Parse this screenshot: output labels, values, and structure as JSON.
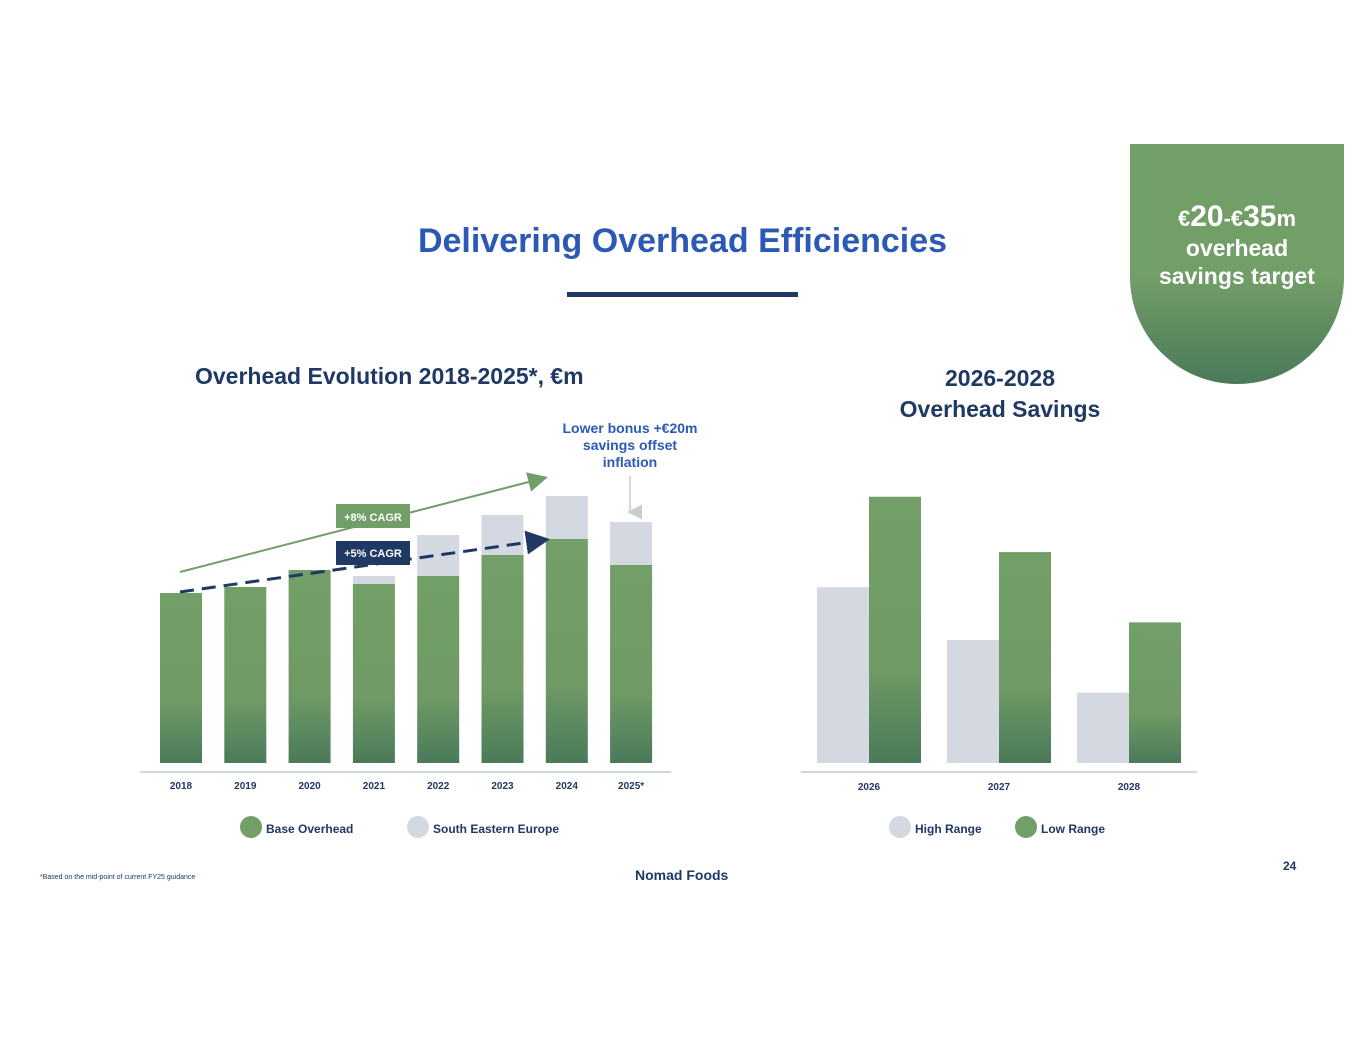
{
  "page": {
    "title": "Delivering Overhead Efficiencies",
    "footnote": "*Based on the mid-point of current FY25 guidance",
    "logo": "Nomad Foods",
    "page_number": "24"
  },
  "badge": {
    "prefix1": "€",
    "num1": "20",
    "sep": "-€",
    "num2": "35",
    "suffix": "m",
    "line2": "overhead",
    "line3": "savings target"
  },
  "colors": {
    "title_blue": "#2B59B5",
    "navy": "#1F3864",
    "green": "#729E67",
    "green_dark": "#4A7A5A",
    "grey": "#D4D8E0"
  },
  "chart_data": [
    {
      "type": "bar",
      "stacked": true,
      "title": "Overhead Evolution 2018-2025*, €m",
      "categories": [
        "2018",
        "2019",
        "2020",
        "2021",
        "2022",
        "2023",
        "2024",
        "2025*"
      ],
      "series": [
        {
          "name": "Base Overhead",
          "values": [
            170,
            176,
            193,
            179,
            187,
            208,
            224,
            198
          ]
        },
        {
          "name": "South Eastern Europe",
          "values": [
            0,
            0,
            0,
            8,
            41,
            40,
            43,
            43
          ]
        }
      ],
      "ylim": [
        0,
        290
      ],
      "annotations": {
        "cagr_high": "+8% CAGR",
        "cagr_low": "+5% CAGR",
        "callout_line1": "Lower bonus +€20m",
        "callout_line2": "savings offset",
        "callout_line3": "inflation"
      }
    },
    {
      "type": "bar",
      "title_line1": "2026-2028",
      "title_line2": "Overhead Savings",
      "categories": [
        "2026",
        "2027",
        "2028"
      ],
      "series": [
        {
          "name": "High Range",
          "values": [
            20,
            14,
            8
          ]
        },
        {
          "name": "Low Range",
          "values": [
            30.3,
            24,
            16
          ]
        }
      ],
      "ylim": [
        0,
        33
      ]
    }
  ]
}
